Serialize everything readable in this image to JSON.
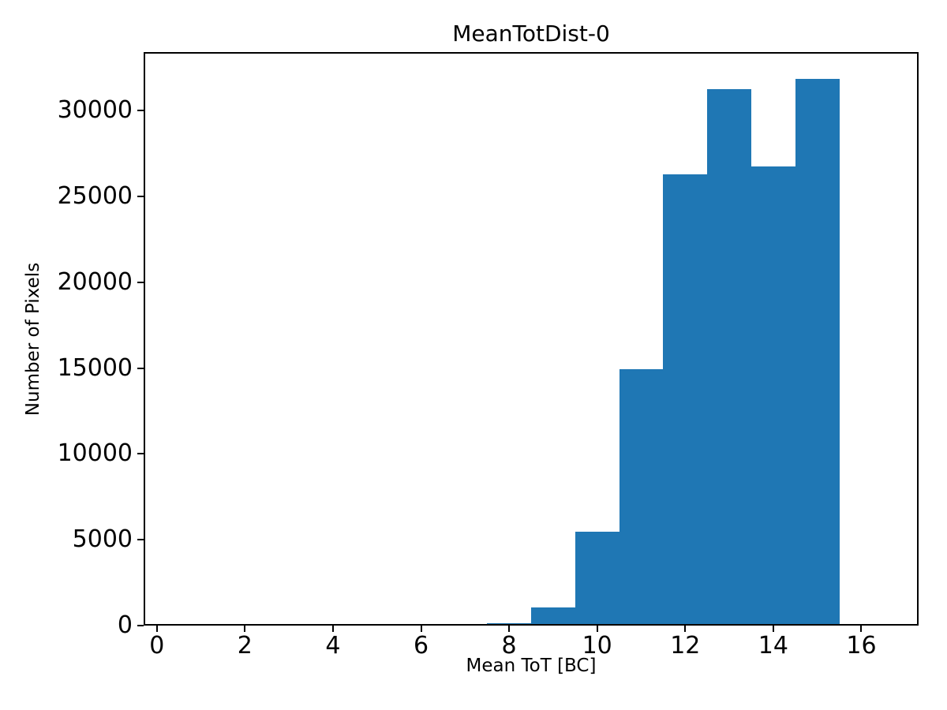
{
  "chart_data": {
    "type": "bar",
    "subtype": "histogram",
    "title": "MeanTotDist-0",
    "xlabel": "Mean ToT [BC]",
    "ylabel": "Number of Pixels",
    "bar_color": "#1f77b4",
    "axis_color": "#000000",
    "background_color": "#ffffff",
    "bin_edges": [
      7.5,
      8.5,
      9.5,
      10.5,
      11.5,
      12.5,
      13.5,
      14.5,
      15.5
    ],
    "counts": [
      150,
      1080,
      5470,
      14950,
      26300,
      31230,
      26730,
      31820
    ],
    "xticks": [
      0,
      2,
      4,
      6,
      8,
      10,
      12,
      14,
      16
    ],
    "yticks": [
      0,
      5000,
      10000,
      15000,
      20000,
      25000,
      30000
    ],
    "xlim": [
      -0.3,
      17.3
    ],
    "ylim": [
      0,
      33400
    ],
    "grid": false,
    "legend": null
  }
}
